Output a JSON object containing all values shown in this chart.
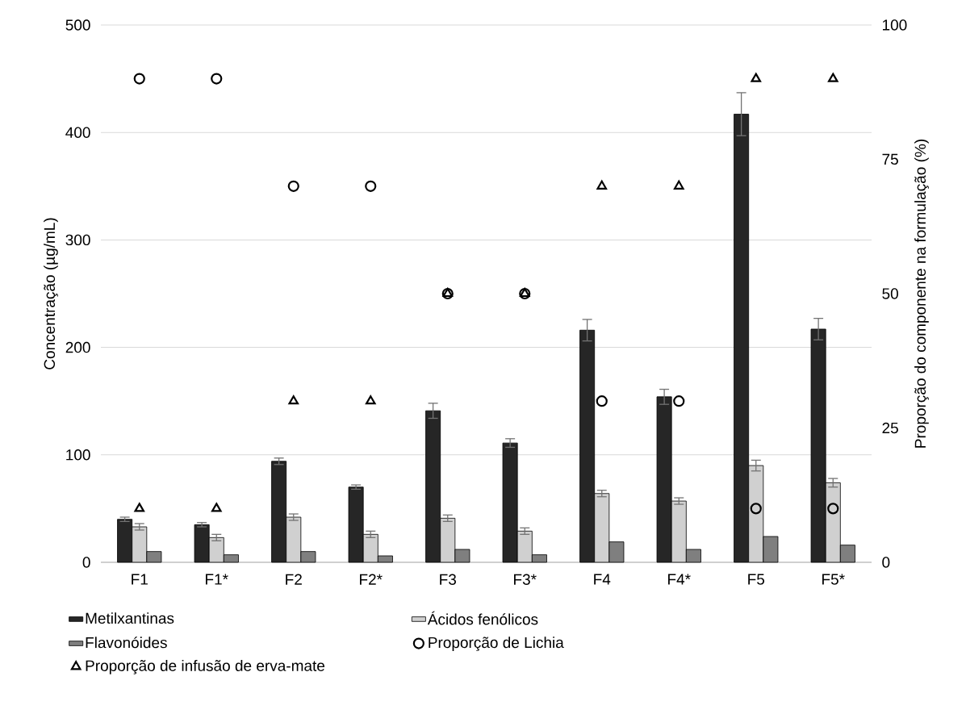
{
  "chart_data": {
    "type": "bar",
    "categories": [
      "F1",
      "F1*",
      "F2",
      "F2*",
      "F3",
      "F3*",
      "F4",
      "F4*",
      "F5",
      "F5*"
    ],
    "ylabel": "Concentração (µg/mL)",
    "y2label": "Proporção do componente na formulação (%)",
    "ylim": [
      0,
      500
    ],
    "yticks": [
      0,
      100,
      200,
      300,
      400,
      500
    ],
    "y2lim": [
      0,
      100
    ],
    "y2ticks": [
      0,
      25,
      50,
      75,
      100
    ],
    "grid": "y",
    "legend": "bottom",
    "series": [
      {
        "name": "Metilxantinas",
        "color": "#262626",
        "values": [
          40,
          35,
          94,
          70,
          141,
          111,
          216,
          154,
          417,
          217
        ],
        "errors": [
          2,
          2,
          3,
          2,
          7,
          4,
          10,
          7,
          20,
          10
        ]
      },
      {
        "name": "Ácidos fenólicos",
        "color": "#d0d0d0",
        "values": [
          33,
          23,
          42,
          26,
          41,
          29,
          64,
          57,
          90,
          74
        ],
        "errors": [
          3,
          3,
          3,
          3,
          3,
          3,
          3,
          3,
          5,
          4
        ]
      },
      {
        "name": "Flavonóides",
        "color": "#7f7f7f",
        "values": [
          10,
          7,
          10,
          6,
          12,
          7,
          19,
          12,
          24,
          16
        ]
      },
      {
        "name": "Proporção de Lichia",
        "type": "scatter",
        "axis": "y2",
        "marker": "circle",
        "color": "#000000",
        "values": [
          90,
          90,
          70,
          70,
          50,
          50,
          30,
          30,
          10,
          10
        ]
      },
      {
        "name": "Proporção de infusão de erva-mate",
        "type": "scatter",
        "axis": "y2",
        "marker": "triangle",
        "color": "#000000",
        "values": [
          10,
          10,
          30,
          30,
          50,
          50,
          70,
          70,
          90,
          90
        ]
      }
    ]
  }
}
